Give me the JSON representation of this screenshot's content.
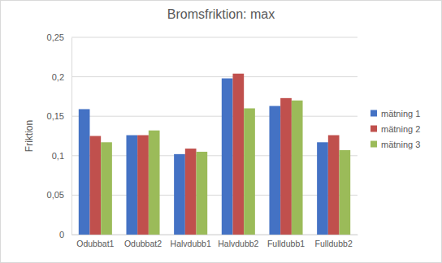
{
  "chart_data": {
    "type": "bar",
    "title": "Bromsfriktion: max",
    "y_label": "Friktion",
    "categories": [
      "Odubbat1",
      "Odubbat2",
      "Halvdubb1",
      "Halvdubb2",
      "Fulldubb1",
      "Fulldubb2"
    ],
    "series": [
      {
        "name": "mätning 1",
        "color": "#4472c4",
        "values": [
          0.159,
          0.126,
          0.102,
          0.198,
          0.163,
          0.117
        ]
      },
      {
        "name": "mätning 2",
        "color": "#c0504d",
        "values": [
          0.125,
          0.126,
          0.109,
          0.204,
          0.173,
          0.126
        ]
      },
      {
        "name": "mätning 3",
        "color": "#9bbb59",
        "values": [
          0.117,
          0.132,
          0.105,
          0.16,
          0.17,
          0.107
        ]
      }
    ],
    "ylim": [
      0,
      0.25
    ],
    "yticks": [
      0,
      {
        "value": 0.05,
        "label": "0,05"
      },
      {
        "value": 0.1,
        "label": "0,1"
      },
      {
        "value": 0.15,
        "label": "0,15"
      },
      {
        "value": 0.2,
        "label": "0,2"
      },
      {
        "value": 0.25,
        "label": "0,25"
      }
    ],
    "grid": true,
    "legend": "right"
  }
}
